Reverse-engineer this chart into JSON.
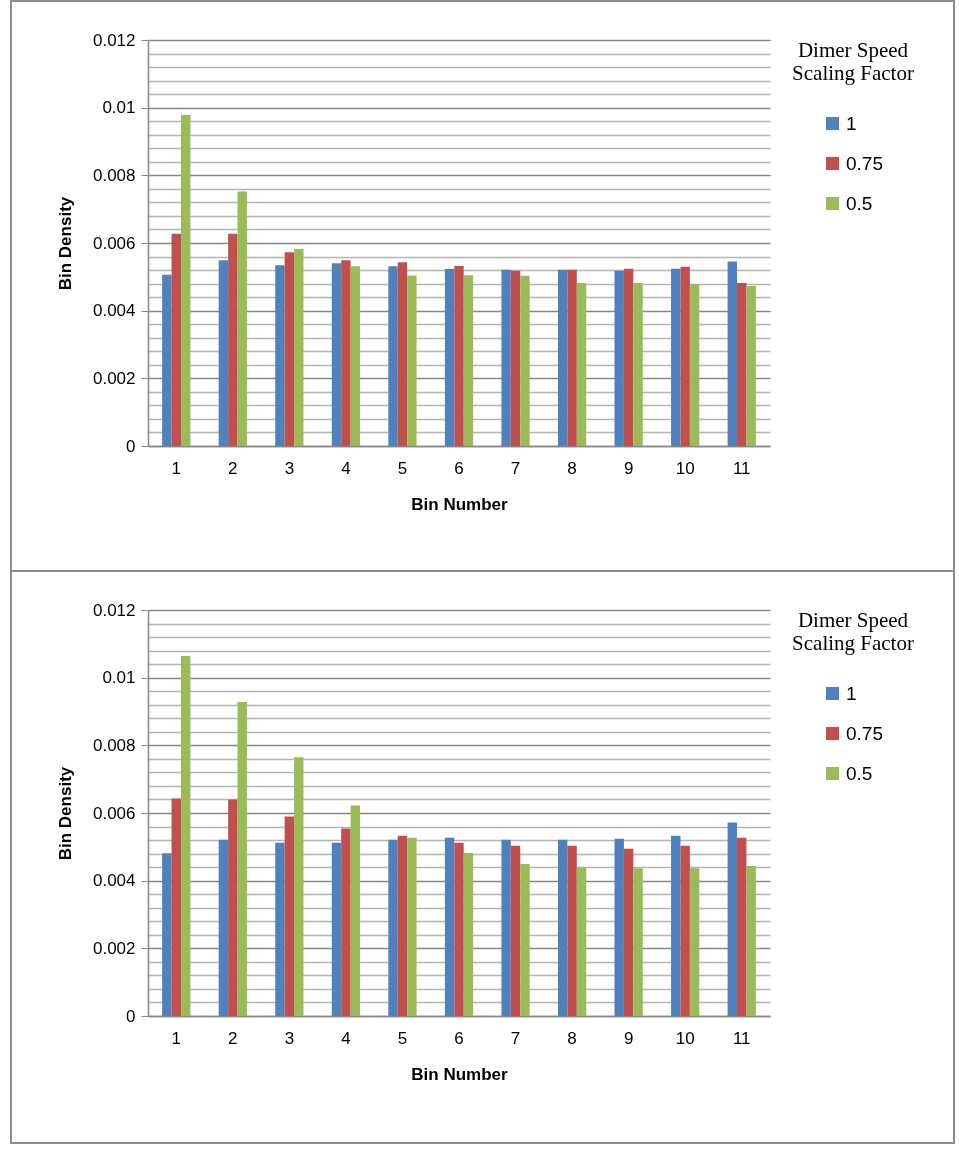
{
  "chart_data": [
    {
      "type": "bar",
      "xlabel": "Bin Number",
      "ylabel": "Bin Density",
      "legend_title": "Dimer Speed Scaling Factor",
      "legend": "right",
      "grid": "y",
      "categories": [
        "1",
        "2",
        "3",
        "4",
        "5",
        "6",
        "7",
        "8",
        "9",
        "10",
        "11"
      ],
      "ylim": [
        0,
        0.012
      ],
      "yticks": [
        0,
        {
          "value": 0.0004,
          "label": null
        },
        {
          "value": 0.0008,
          "label": null
        },
        {
          "value": 0.0012,
          "label": null
        },
        {
          "value": 0.0016,
          "label": null
        },
        0.002,
        {
          "value": 0.0024,
          "label": null
        },
        {
          "value": 0.0028,
          "label": null
        },
        {
          "value": 0.0032,
          "label": null
        },
        {
          "value": 0.0036,
          "label": null
        },
        0.004,
        {
          "value": 0.0044,
          "label": null
        },
        {
          "value": 0.0048,
          "label": null
        },
        {
          "value": 0.0052,
          "label": null
        },
        {
          "value": 0.0056,
          "label": null
        },
        0.006,
        {
          "value": 0.0064,
          "label": null
        },
        {
          "value": 0.0068,
          "label": null
        },
        {
          "value": 0.0072,
          "label": null
        },
        {
          "value": 0.0076,
          "label": null
        },
        0.008,
        {
          "value": 0.0084,
          "label": null
        },
        {
          "value": 0.0088,
          "label": null
        },
        {
          "value": 0.0092,
          "label": null
        },
        {
          "value": 0.0096,
          "label": null
        },
        0.01,
        {
          "value": 0.0104,
          "label": null
        },
        {
          "value": 0.0108,
          "label": null
        },
        {
          "value": 0.0112,
          "label": null
        },
        {
          "value": 0.0116,
          "label": null
        },
        0.012
      ],
      "series": [
        {
          "name": "1",
          "color": "#4f81bd",
          "values": [
            0.00506,
            0.00549,
            0.00534,
            0.0054,
            0.00531,
            0.00523,
            0.00521,
            0.00521,
            0.00518,
            0.00524,
            0.00545
          ]
        },
        {
          "name": "0.75",
          "color": "#c0504d",
          "values": [
            0.00627,
            0.00627,
            0.00573,
            0.00549,
            0.00543,
            0.00532,
            0.00518,
            0.00521,
            0.00524,
            0.0053,
            0.00482
          ]
        },
        {
          "name": "0.5",
          "color": "#9bbb59",
          "values": [
            0.00978,
            0.00752,
            0.00582,
            0.00531,
            0.00504,
            0.00505,
            0.00503,
            0.00482,
            0.00482,
            0.00479,
            0.00473
          ]
        }
      ]
    },
    {
      "type": "bar",
      "xlabel": "Bin Number",
      "ylabel": "Bin Density",
      "legend_title": "Dimer Speed Scaling Factor",
      "legend": "right",
      "grid": "y",
      "categories": [
        "1",
        "2",
        "3",
        "4",
        "5",
        "6",
        "7",
        "8",
        "9",
        "10",
        "11"
      ],
      "ylim": [
        0,
        0.012
      ],
      "yticks": [
        0,
        {
          "value": 0.0004,
          "label": null
        },
        {
          "value": 0.0008,
          "label": null
        },
        {
          "value": 0.0012,
          "label": null
        },
        {
          "value": 0.0016,
          "label": null
        },
        0.002,
        {
          "value": 0.0024,
          "label": null
        },
        {
          "value": 0.0028,
          "label": null
        },
        {
          "value": 0.0032,
          "label": null
        },
        {
          "value": 0.0036,
          "label": null
        },
        0.004,
        {
          "value": 0.0044,
          "label": null
        },
        {
          "value": 0.0048,
          "label": null
        },
        {
          "value": 0.0052,
          "label": null
        },
        {
          "value": 0.0056,
          "label": null
        },
        0.006,
        {
          "value": 0.0064,
          "label": null
        },
        {
          "value": 0.0068,
          "label": null
        },
        {
          "value": 0.0072,
          "label": null
        },
        {
          "value": 0.0076,
          "label": null
        },
        0.008,
        {
          "value": 0.0084,
          "label": null
        },
        {
          "value": 0.0088,
          "label": null
        },
        {
          "value": 0.0092,
          "label": null
        },
        {
          "value": 0.0096,
          "label": null
        },
        0.01,
        {
          "value": 0.0104,
          "label": null
        },
        {
          "value": 0.0108,
          "label": null
        },
        {
          "value": 0.0112,
          "label": null
        },
        {
          "value": 0.0116,
          "label": null
        },
        0.012
      ],
      "series": [
        {
          "name": "1",
          "color": "#4f81bd",
          "values": [
            0.00481,
            0.00521,
            0.00512,
            0.00512,
            0.00521,
            0.00527,
            0.00521,
            0.00521,
            0.00524,
            0.00533,
            0.00572
          ]
        },
        {
          "name": "0.75",
          "color": "#c0504d",
          "values": [
            0.00643,
            0.0064,
            0.0059,
            0.00554,
            0.00533,
            0.00512,
            0.00503,
            0.00503,
            0.00494,
            0.00503,
            0.00527
          ]
        },
        {
          "name": "0.5",
          "color": "#9bbb59",
          "values": [
            0.01064,
            0.00928,
            0.00765,
            0.00622,
            0.00527,
            0.00482,
            0.00449,
            0.0044,
            0.00437,
            0.00437,
            0.00443
          ]
        }
      ]
    }
  ]
}
